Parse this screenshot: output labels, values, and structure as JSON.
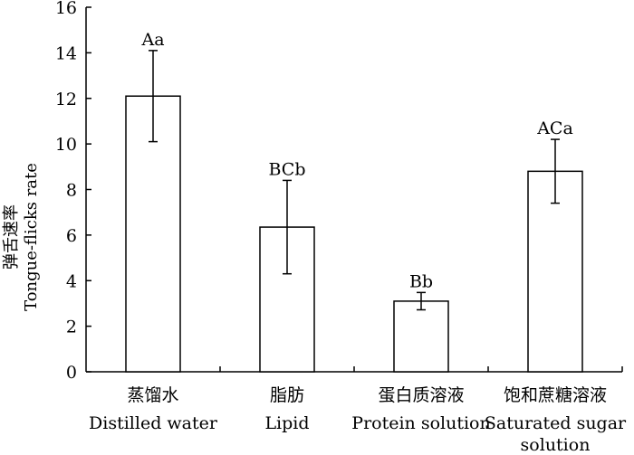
{
  "chart_data": {
    "type": "bar",
    "title": "",
    "ylabel_cn": "弹舌速率",
    "ylabel_en": "Tongue-flicks rate",
    "xlabel": "",
    "ylim": [
      0,
      16
    ],
    "yticks": [
      0,
      2,
      4,
      6,
      8,
      10,
      12,
      14,
      16
    ],
    "grid": false,
    "legend": "none",
    "categories": [
      {
        "cn": "蒸馏水",
        "en": [
          "Distilled water"
        ]
      },
      {
        "cn": "脂肪",
        "en": [
          "Lipid"
        ]
      },
      {
        "cn": "蛋白质溶液",
        "en": [
          "Protein solution"
        ]
      },
      {
        "cn": "饱和蔗糖溶液",
        "en": [
          "Saturated sugar",
          "solution"
        ]
      }
    ],
    "values": [
      12.1,
      6.35,
      3.1,
      8.8
    ],
    "error": [
      2.0,
      2.05,
      0.38,
      1.4
    ],
    "annotations": [
      "Aa",
      "BCb",
      "Bb",
      "ACa"
    ],
    "bar_fill": "#ffffff",
    "bar_stroke": "#000000"
  }
}
